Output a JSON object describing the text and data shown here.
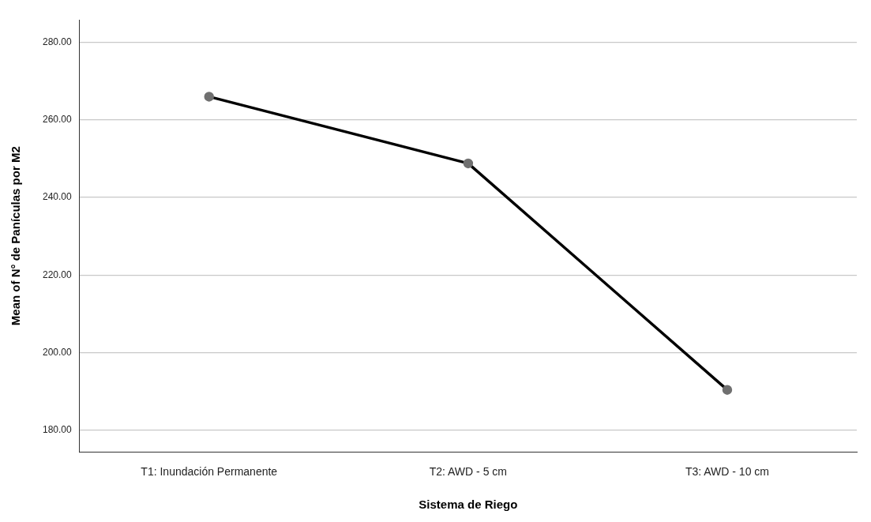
{
  "chart_data": {
    "type": "line",
    "xlabel": "Sistema de Riego",
    "ylabel": "Mean of N° de Panículas por M2",
    "categories": [
      "T1: Inundación Permanente",
      "T2: AWD - 5 cm",
      "T3: AWD - 10 cm"
    ],
    "series": [
      {
        "color": "#000000",
        "values": [
          266.0,
          248.8,
          190.4
        ]
      }
    ],
    "ylim": [
      174.4,
      285.8
    ],
    "yticks": [
      {
        "value": 180,
        "label": "180.00"
      },
      {
        "value": 200,
        "label": "200.00"
      },
      {
        "value": 220,
        "label": "220.00"
      },
      {
        "value": 240,
        "label": "240.00"
      },
      {
        "value": 260,
        "label": "260.00"
      },
      {
        "value": 280,
        "label": "280.00"
      }
    ],
    "grid": "y",
    "legend": false,
    "marker": "circle",
    "line_style": "solid"
  }
}
